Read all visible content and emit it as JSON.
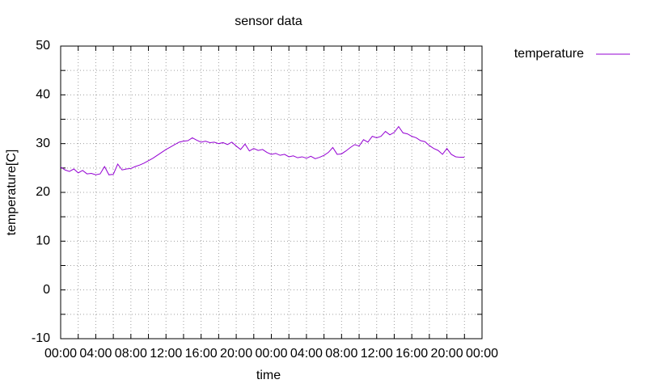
{
  "chart_data": {
    "type": "line",
    "title": "sensor data",
    "x_label": "time",
    "y_label": "temperature[C]",
    "xlim": [
      0,
      48
    ],
    "ylim": [
      -10,
      50
    ],
    "xticks": [
      {
        "value": 0,
        "label": "00:00"
      },
      {
        "value": 4,
        "label": "04:00"
      },
      {
        "value": 8,
        "label": "08:00"
      },
      {
        "value": 12,
        "label": "12:00"
      },
      {
        "value": 16,
        "label": "16:00"
      },
      {
        "value": 20,
        "label": "20:00"
      },
      {
        "value": 24,
        "label": "00:00"
      },
      {
        "value": 28,
        "label": "04:00"
      },
      {
        "value": 32,
        "label": "08:00"
      },
      {
        "value": 36,
        "label": "12:00"
      },
      {
        "value": 40,
        "label": "16:00"
      },
      {
        "value": 44,
        "label": "20:00"
      },
      {
        "value": 48,
        "label": "00:00"
      }
    ],
    "xminorticks": [
      2,
      6,
      10,
      14,
      18,
      22,
      26,
      30,
      34,
      38,
      42,
      46
    ],
    "yticks": [
      -10,
      0,
      10,
      20,
      30,
      40,
      50
    ],
    "yminorticks": [
      -5,
      5,
      15,
      25,
      35,
      45
    ],
    "grid": true,
    "legend": "top-right",
    "x": [
      0,
      0.5,
      1,
      1.5,
      2,
      2.5,
      3,
      3.5,
      4,
      4.5,
      5,
      5.5,
      6,
      6.5,
      7,
      7.5,
      8,
      8.5,
      9,
      9.5,
      10,
      10.5,
      11,
      11.5,
      12,
      12.5,
      13,
      13.5,
      14,
      14.5,
      15,
      15.5,
      16,
      16.5,
      17,
      17.5,
      18,
      18.5,
      19,
      19.5,
      20,
      20.5,
      21,
      21.5,
      22,
      22.5,
      23,
      23.5,
      24,
      24.5,
      25,
      25.5,
      26,
      26.5,
      27,
      27.5,
      28,
      28.5,
      29,
      29.5,
      30,
      30.5,
      31,
      31.5,
      32,
      32.5,
      33,
      33.5,
      34,
      34.5,
      35,
      35.5,
      36,
      36.5,
      37,
      37.5,
      38,
      38.5,
      39,
      39.5,
      40,
      40.5,
      41,
      41.5,
      42,
      42.5,
      43,
      43.5,
      44,
      44.5,
      45,
      45.5,
      46
    ],
    "series": [
      {
        "name": "temperature",
        "color": "#9400d3",
        "values": [
          25.2,
          24.6,
          24.3,
          24.8,
          24.0,
          24.5,
          23.8,
          23.9,
          23.6,
          23.8,
          25.3,
          23.6,
          23.7,
          25.8,
          24.6,
          24.8,
          24.9,
          25.3,
          25.6,
          26.0,
          26.5,
          27.0,
          27.6,
          28.2,
          28.8,
          29.3,
          29.8,
          30.3,
          30.5,
          30.6,
          31.2,
          30.7,
          30.3,
          30.5,
          30.2,
          30.3,
          30.0,
          30.2,
          29.8,
          30.3,
          29.5,
          28.8,
          29.9,
          28.5,
          29.0,
          28.6,
          28.8,
          28.2,
          27.8,
          28.0,
          27.6,
          27.8,
          27.3,
          27.5,
          27.1,
          27.3,
          27.0,
          27.4,
          26.9,
          27.2,
          27.6,
          28.2,
          29.2,
          27.8,
          27.9,
          28.5,
          29.2,
          29.8,
          29.5,
          30.8,
          30.3,
          31.5,
          31.2,
          31.5,
          32.5,
          31.8,
          32.3,
          33.5,
          32.2,
          32.0,
          31.5,
          31.2,
          30.6,
          30.4,
          29.6,
          29.0,
          28.6,
          27.8,
          29.0,
          27.8,
          27.3,
          27.2,
          27.2
        ]
      }
    ]
  }
}
